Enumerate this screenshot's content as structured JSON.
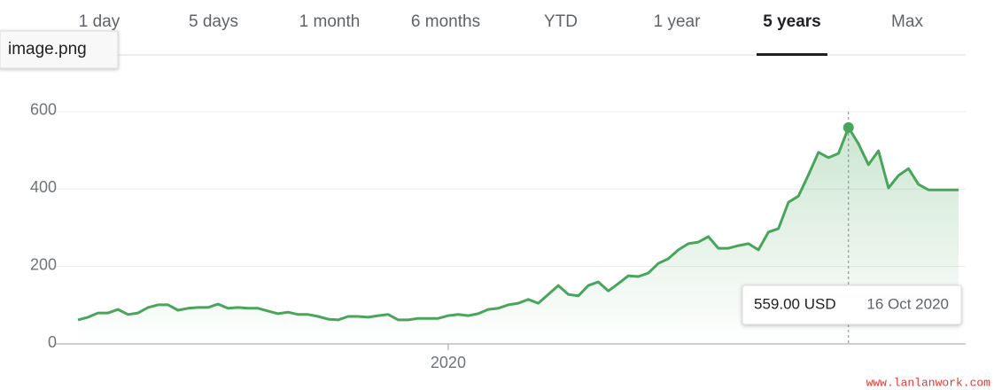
{
  "image_label": "image.png",
  "tabs": [
    "1 day",
    "5 days",
    "1 month",
    "6 months",
    "YTD",
    "1 year",
    "5 years",
    "Max"
  ],
  "active_tab": "5 years",
  "tooltip": {
    "price": "559.00 USD",
    "date": "16 Oct 2020"
  },
  "watermark": "www.lanlanwork.com",
  "chart_data": {
    "type": "line",
    "color": "#4aa55c",
    "categories": [
      null,
      null,
      null,
      null,
      null,
      null,
      null,
      null,
      null,
      null,
      null,
      null,
      null,
      null,
      null,
      null,
      null,
      null,
      null,
      null,
      null,
      null,
      null,
      null,
      null,
      null,
      null,
      null,
      null,
      null,
      null,
      null,
      null,
      null,
      null,
      null,
      null,
      "2020",
      null,
      null,
      null,
      null,
      null,
      null,
      null,
      null,
      null,
      null,
      null,
      null,
      null,
      null,
      null,
      null,
      null,
      null,
      null,
      null,
      null,
      null,
      null,
      null,
      null,
      null,
      null,
      null,
      null,
      null,
      null,
      null,
      null,
      null,
      null,
      null,
      null,
      null,
      null,
      null,
      null,
      null,
      null,
      null,
      null,
      null,
      null,
      null,
      null,
      null,
      null
    ],
    "values": [
      62,
      69,
      80,
      80,
      89,
      76,
      80,
      94,
      101,
      101,
      87,
      92,
      94,
      94,
      103,
      92,
      94,
      92,
      92,
      85,
      78,
      82,
      76,
      76,
      71,
      64,
      62,
      71,
      71,
      69,
      73,
      76,
      62,
      62,
      66,
      66,
      66,
      73,
      76,
      73,
      78,
      89,
      92,
      101,
      105,
      115,
      105,
      128,
      151,
      128,
      124,
      151,
      160,
      137,
      156,
      176,
      174,
      183,
      208,
      220,
      243,
      259,
      263,
      277,
      247,
      247,
      254,
      259,
      243,
      289,
      298,
      366,
      382,
      437,
      495,
      481,
      492,
      559,
      517,
      463,
      499,
      403,
      435,
      453,
      412,
      398,
      398,
      398,
      398
    ],
    "ylim": [
      0,
      640
    ],
    "yticks": [
      0,
      200,
      400,
      600
    ],
    "grid": true
  }
}
